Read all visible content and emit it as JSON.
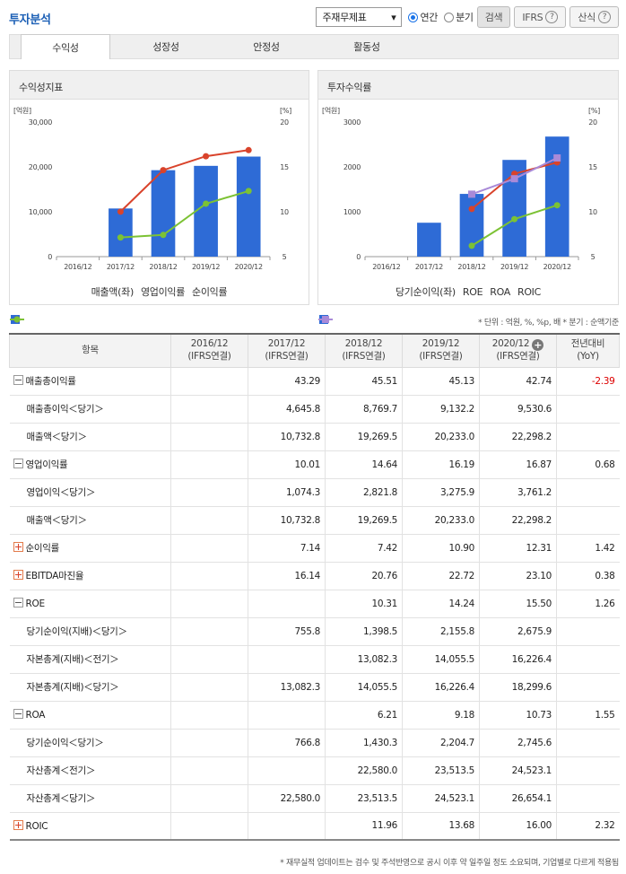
{
  "header": {
    "title": "투자분석",
    "select_value": "주재무제표",
    "radio_annual": "연간",
    "radio_quarter": "분기",
    "search_label": "검색",
    "ifrs_label": "IFRS",
    "formula_label": "산식",
    "help_glyph": "?"
  },
  "tabs": [
    "수익성",
    "성장성",
    "안정성",
    "활동성"
  ],
  "panels": {
    "left_title": "수익성지표",
    "right_title": "투자수익률"
  },
  "chart_data": [
    {
      "type": "bar",
      "categories": [
        "2016/12",
        "2017/12",
        "2018/12",
        "2019/12",
        "2020/12"
      ],
      "y_left_unit": "[억원]",
      "y_right_unit": "[%]",
      "y_left_ticks": [
        "0",
        "10,000",
        "20,000",
        "30,000"
      ],
      "y_right_ticks": [
        "5",
        "10",
        "15",
        "20"
      ],
      "ylim": [
        0,
        30000
      ],
      "y2lim": [
        5,
        20
      ],
      "series": [
        {
          "name": "매출액(좌)",
          "kind": "bar",
          "axis": "left",
          "color": "#2e6bd6",
          "values": [
            null,
            10732.8,
            19269.5,
            20233.0,
            22298.2
          ]
        },
        {
          "name": "영업이익률",
          "kind": "line",
          "axis": "right",
          "color": "#d9432b",
          "values": [
            null,
            10.01,
            14.64,
            16.19,
            16.87
          ]
        },
        {
          "name": "순이익률",
          "kind": "line",
          "axis": "right",
          "color": "#7cc234",
          "values": [
            null,
            7.14,
            7.42,
            10.9,
            12.31
          ]
        }
      ],
      "legend": "bottom-center"
    },
    {
      "type": "bar",
      "categories": [
        "2016/12",
        "2017/12",
        "2018/12",
        "2019/12",
        "2020/12"
      ],
      "y_left_unit": "[억원]",
      "y_right_unit": "[%]",
      "y_left_ticks": [
        "0",
        "1000",
        "2000",
        "3000"
      ],
      "y_right_ticks": [
        "5",
        "10",
        "15",
        "20"
      ],
      "ylim": [
        0,
        3000
      ],
      "y2lim": [
        5,
        20
      ],
      "series": [
        {
          "name": "당기순이익(좌)",
          "kind": "bar",
          "axis": "left",
          "color": "#2e6bd6",
          "values": [
            null,
            755.8,
            1398.5,
            2155.8,
            2675.9
          ]
        },
        {
          "name": "ROE",
          "kind": "line",
          "axis": "right",
          "color": "#d9432b",
          "values": [
            null,
            null,
            10.31,
            14.24,
            15.5
          ]
        },
        {
          "name": "ROA",
          "kind": "line",
          "axis": "right",
          "color": "#7cc234",
          "values": [
            null,
            null,
            6.21,
            9.18,
            10.73
          ]
        },
        {
          "name": "ROIC",
          "kind": "line",
          "axis": "right",
          "color": "#a98ad8",
          "values": [
            null,
            null,
            11.96,
            13.68,
            16.0
          ]
        }
      ],
      "legend": "bottom-center"
    }
  ],
  "unit_note": "* 단위 : 억원, %, %p, 배   * 분기 : 순액기준",
  "table": {
    "col_item": "항목",
    "columns": [
      {
        "period": "2016/12",
        "basis": "(IFRS연결)"
      },
      {
        "period": "2017/12",
        "basis": "(IFRS연결)"
      },
      {
        "period": "2018/12",
        "basis": "(IFRS연결)"
      },
      {
        "period": "2019/12",
        "basis": "(IFRS연결)"
      },
      {
        "period": "2020/12",
        "basis": "(IFRS연결)"
      }
    ],
    "col_yoy_1": "전년대비",
    "col_yoy_2": "(YoY)",
    "add_glyph": "+",
    "rows": [
      {
        "label": "매출총이익률",
        "toggle": "minus",
        "values": [
          "",
          "43.29",
          "45.51",
          "45.13",
          "42.74"
        ],
        "yoy": "-2.39"
      },
      {
        "label": "매출총이익＜당기＞",
        "toggle": "",
        "values": [
          "",
          "4,645.8",
          "8,769.7",
          "9,132.2",
          "9,530.6"
        ],
        "yoy": ""
      },
      {
        "label": "매출액＜당기＞",
        "toggle": "",
        "values": [
          "",
          "10,732.8",
          "19,269.5",
          "20,233.0",
          "22,298.2"
        ],
        "yoy": ""
      },
      {
        "label": "영업이익률",
        "toggle": "minus",
        "values": [
          "",
          "10.01",
          "14.64",
          "16.19",
          "16.87"
        ],
        "yoy": "0.68"
      },
      {
        "label": "영업이익＜당기＞",
        "toggle": "",
        "values": [
          "",
          "1,074.3",
          "2,821.8",
          "3,275.9",
          "3,761.2"
        ],
        "yoy": ""
      },
      {
        "label": "매출액＜당기＞",
        "toggle": "",
        "values": [
          "",
          "10,732.8",
          "19,269.5",
          "20,233.0",
          "22,298.2"
        ],
        "yoy": ""
      },
      {
        "label": "순이익률",
        "toggle": "plus",
        "values": [
          "",
          "7.14",
          "7.42",
          "10.90",
          "12.31"
        ],
        "yoy": "1.42"
      },
      {
        "label": "EBITDA마진율",
        "toggle": "plus",
        "values": [
          "",
          "16.14",
          "20.76",
          "22.72",
          "23.10"
        ],
        "yoy": "0.38"
      },
      {
        "label": "ROE",
        "toggle": "minus",
        "values": [
          "",
          "",
          "10.31",
          "14.24",
          "15.50"
        ],
        "yoy": "1.26"
      },
      {
        "label": "당기순이익(지배)＜당기＞",
        "toggle": "",
        "values": [
          "",
          "755.8",
          "1,398.5",
          "2,155.8",
          "2,675.9"
        ],
        "yoy": ""
      },
      {
        "label": "자본총계(지배)＜전기＞",
        "toggle": "",
        "values": [
          "",
          "",
          "13,082.3",
          "14,055.5",
          "16,226.4"
        ],
        "yoy": ""
      },
      {
        "label": "자본총계(지배)＜당기＞",
        "toggle": "",
        "values": [
          "",
          "13,082.3",
          "14,055.5",
          "16,226.4",
          "18,299.6"
        ],
        "yoy": ""
      },
      {
        "label": "ROA",
        "toggle": "minus",
        "values": [
          "",
          "",
          "6.21",
          "9.18",
          "10.73"
        ],
        "yoy": "1.55"
      },
      {
        "label": "당기순이익＜당기＞",
        "toggle": "",
        "values": [
          "",
          "766.8",
          "1,430.3",
          "2,204.7",
          "2,745.6"
        ],
        "yoy": ""
      },
      {
        "label": "자산총계＜전기＞",
        "toggle": "",
        "values": [
          "",
          "",
          "22,580.0",
          "23,513.5",
          "24,523.1"
        ],
        "yoy": ""
      },
      {
        "label": "자산총계＜당기＞",
        "toggle": "",
        "values": [
          "",
          "22,580.0",
          "23,513.5",
          "24,523.1",
          "26,654.1"
        ],
        "yoy": ""
      },
      {
        "label": "ROIC",
        "toggle": "plus",
        "values": [
          "",
          "",
          "11.96",
          "13.68",
          "16.00"
        ],
        "yoy": "2.32"
      }
    ]
  },
  "footnote": "* 재무실적 업데이트는 검수 및 주석반영으로 공시 이후 약 일주일 정도 소요되며, 기업별로 다르게 적용됨"
}
